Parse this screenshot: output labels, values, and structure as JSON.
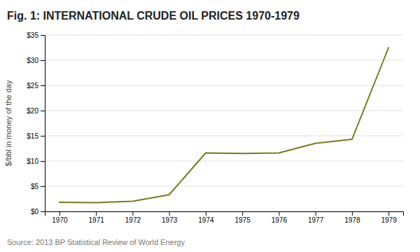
{
  "chart_data": {
    "type": "line",
    "title": "Fig. 1: INTERNATIONAL CRUDE OIL PRICES 1970-1979",
    "x": [
      1970,
      1971,
      1972,
      1973,
      1974,
      1975,
      1976,
      1977,
      1978,
      1979
    ],
    "values": [
      1.8,
      1.75,
      2.0,
      3.3,
      11.6,
      11.5,
      11.6,
      13.5,
      14.3,
      32.5
    ],
    "color": "#7a7a1a",
    "ylabel": "$/bbl in money of the day",
    "annotations": [
      "Source: 2013 BP Statistical Review of World Energy"
    ],
    "xlim": [
      1969.6,
      1979.4
    ],
    "xticks": [
      1970,
      1971,
      1972,
      1973,
      1974,
      1975,
      1976,
      1977,
      1978,
      1979
    ],
    "ylim": [
      0,
      35
    ],
    "yticks": [
      {
        "value": 0,
        "label": "$0"
      },
      {
        "value": 5,
        "label": "$5"
      },
      {
        "value": 10,
        "label": "$10"
      },
      {
        "value": 15,
        "label": "$15"
      },
      {
        "value": 20,
        "label": "$20"
      },
      {
        "value": 25,
        "label": "$25"
      },
      {
        "value": 30,
        "label": "$30"
      },
      {
        "value": 35,
        "label": "$35"
      }
    ],
    "grid": "y"
  }
}
